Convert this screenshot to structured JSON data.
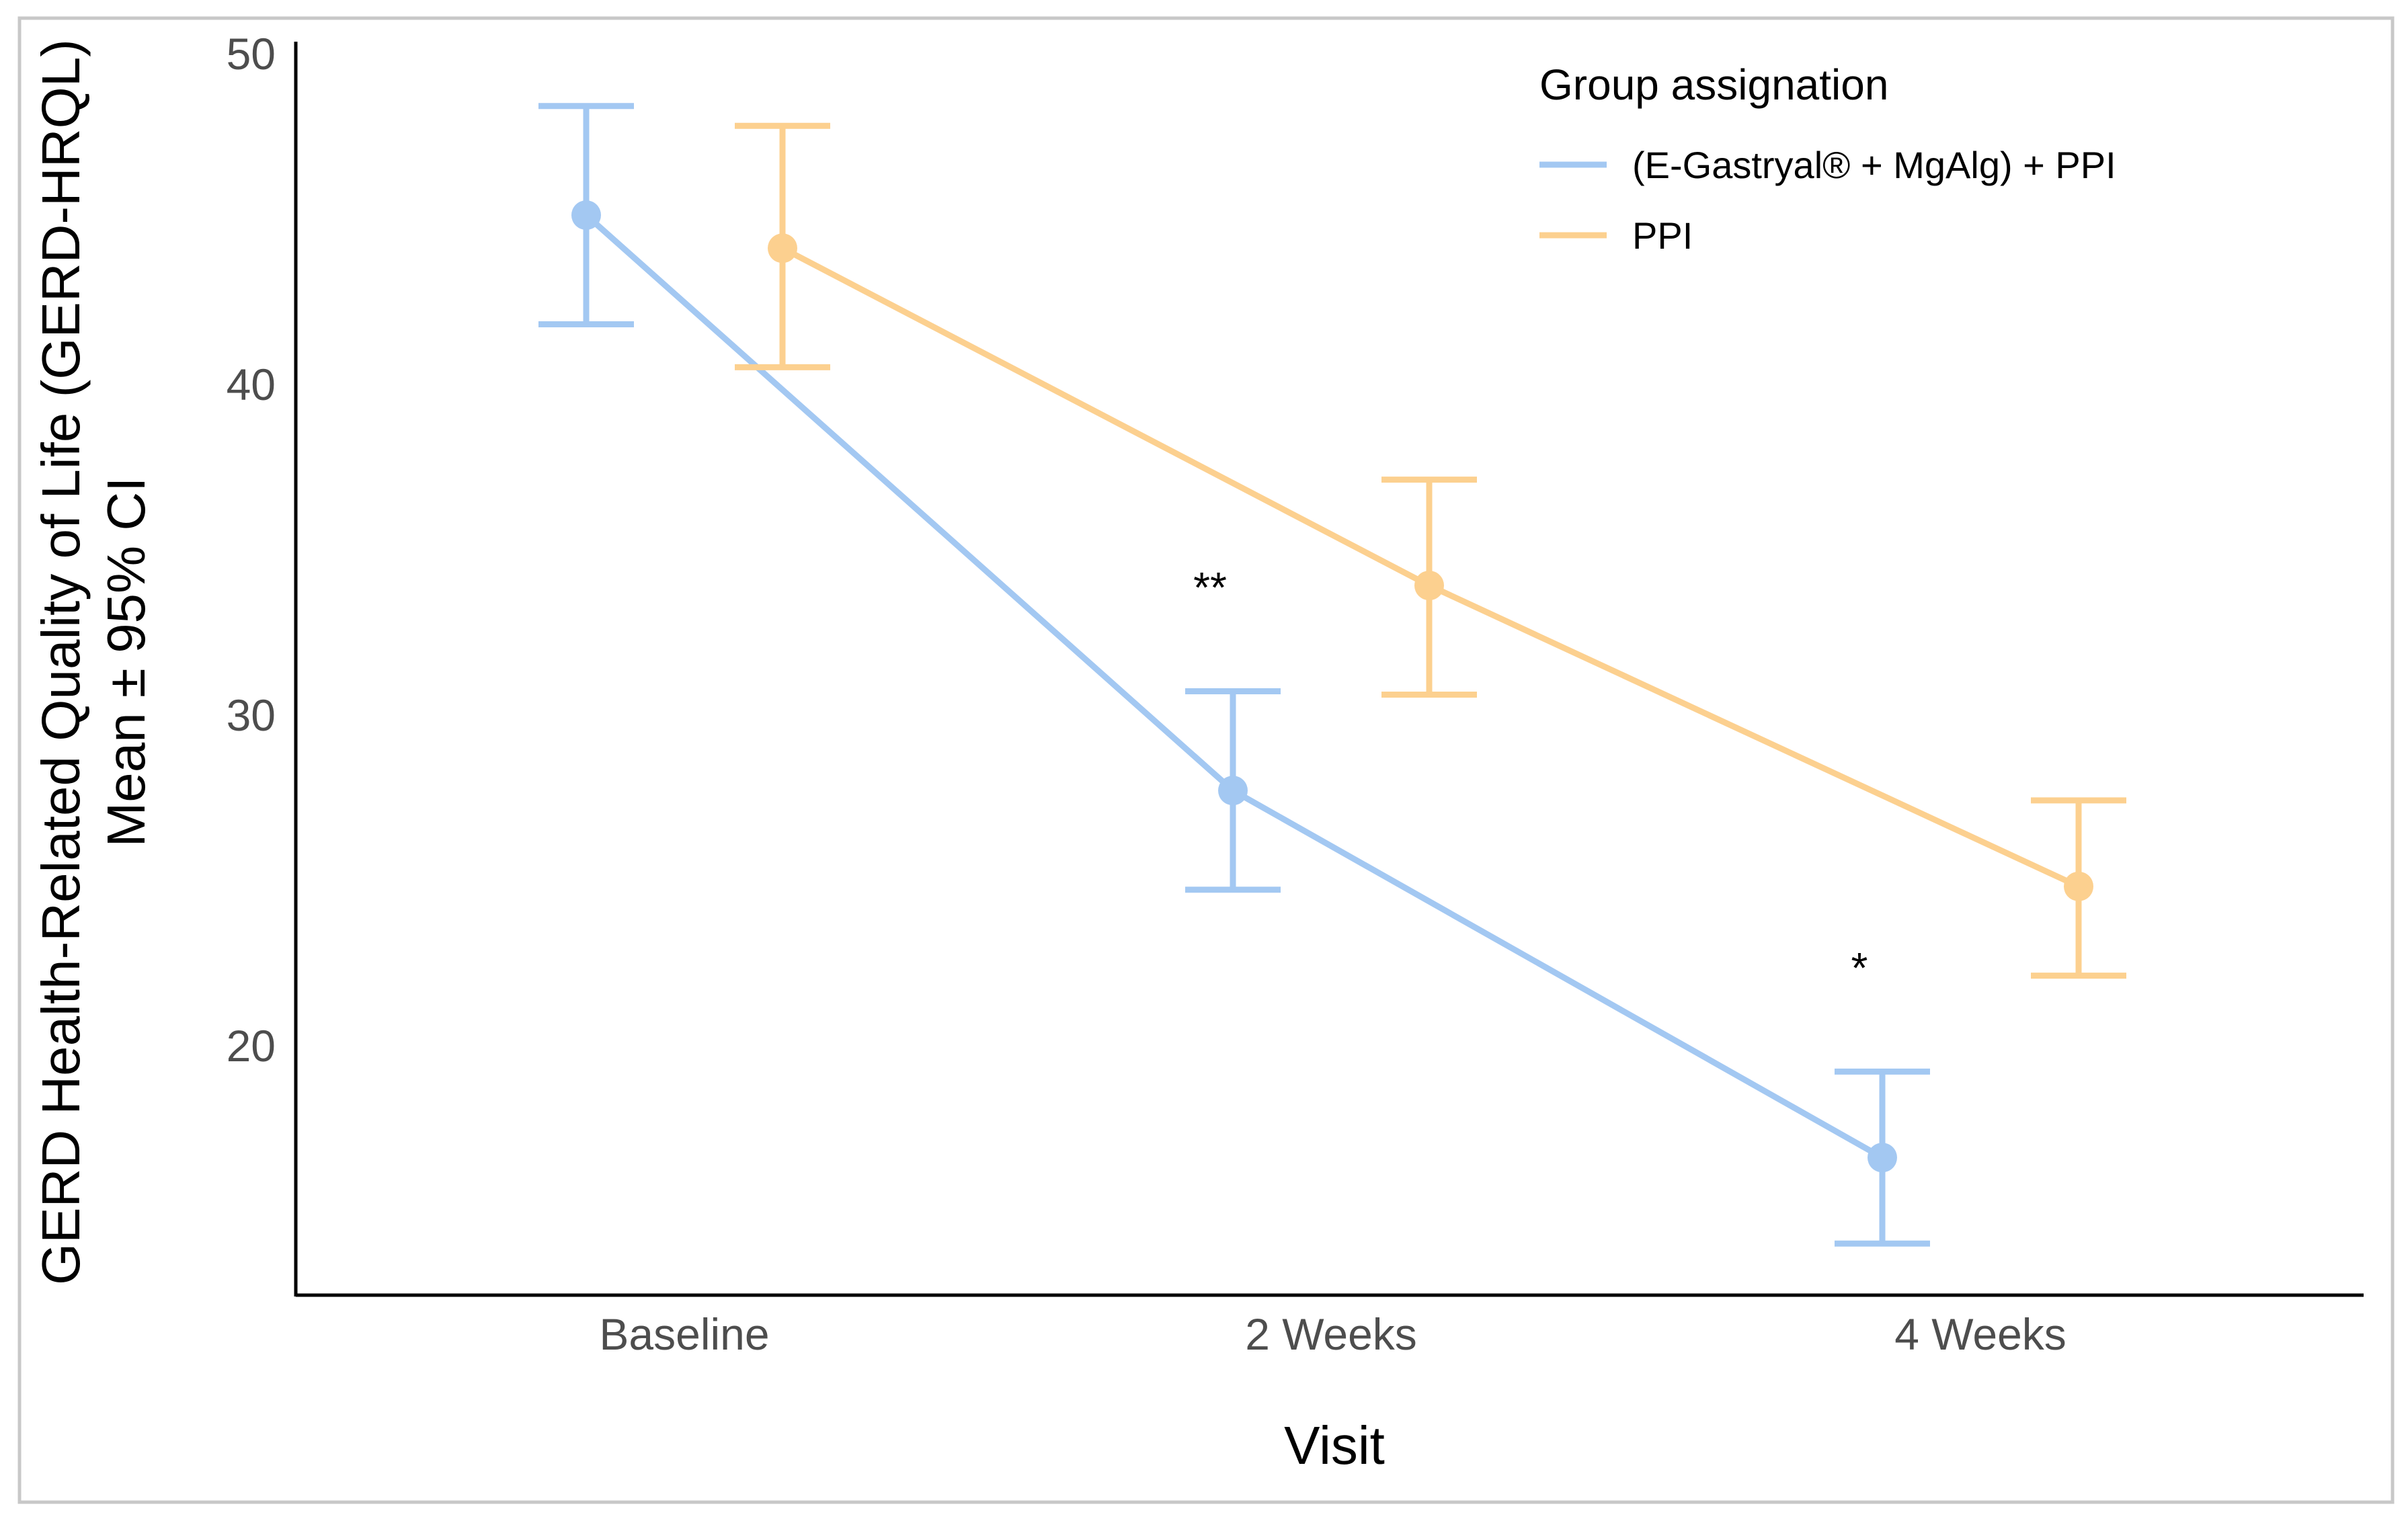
{
  "chart_data": {
    "type": "line",
    "title": "",
    "xlabel": "Visit",
    "ylabel_line1": "GERD Health-Related Quality of Life (GERD-HRQL)",
    "ylabel_line2": "Mean ± 95% CI",
    "categories": [
      "Baseline",
      "2 Weeks",
      "4 Weeks"
    ],
    "ylim": [
      12.5,
      50
    ],
    "yticks": [
      20,
      30,
      40,
      50
    ],
    "legend_title": "Group assignation",
    "legend_position": "top-right",
    "series": [
      {
        "name": "(E-Gastryal® + MgAlg) + PPI",
        "color": "#a3c8f2",
        "values": [
          45.1,
          27.7,
          16.6
        ],
        "ci_lower": [
          41.8,
          24.7,
          14.0
        ],
        "ci_upper": [
          48.4,
          30.7,
          19.2
        ]
      },
      {
        "name": "PPI",
        "color": "#fcd08f",
        "values": [
          44.1,
          33.9,
          24.8
        ],
        "ci_lower": [
          40.5,
          30.6,
          22.1
        ],
        "ci_upper": [
          47.8,
          37.1,
          27.4
        ]
      }
    ],
    "annotations": [
      {
        "text": "**",
        "category": "2 Weeks",
        "y": 34.0
      },
      {
        "text": "*",
        "category": "4 Weeks",
        "y": 22.5
      }
    ]
  }
}
